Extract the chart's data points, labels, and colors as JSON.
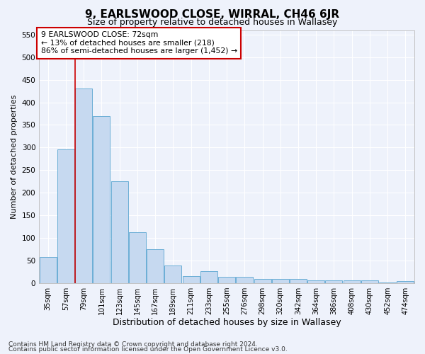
{
  "title": "9, EARLSWOOD CLOSE, WIRRAL, CH46 6JR",
  "subtitle": "Size of property relative to detached houses in Wallasey",
  "xlabel": "Distribution of detached houses by size in Wallasey",
  "ylabel": "Number of detached properties",
  "footnote1": "Contains HM Land Registry data © Crown copyright and database right 2024.",
  "footnote2": "Contains public sector information licensed under the Open Government Licence v3.0.",
  "categories": [
    "35sqm",
    "57sqm",
    "79sqm",
    "101sqm",
    "123sqm",
    "145sqm",
    "167sqm",
    "189sqm",
    "211sqm",
    "233sqm",
    "255sqm",
    "276sqm",
    "298sqm",
    "320sqm",
    "342sqm",
    "364sqm",
    "386sqm",
    "408sqm",
    "430sqm",
    "452sqm",
    "474sqm"
  ],
  "values": [
    57,
    295,
    430,
    370,
    225,
    112,
    75,
    38,
    15,
    26,
    13,
    13,
    8,
    9,
    9,
    5,
    5,
    5,
    5,
    1,
    4
  ],
  "bar_color": "#c6d9f0",
  "bar_edge_color": "#6baed6",
  "bg_color": "#eef2fb",
  "plot_bg_color": "#eef2fb",
  "grid_color": "#ffffff",
  "annotation_title": "9 EARLSWOOD CLOSE: 72sqm",
  "annotation_line1": "← 13% of detached houses are smaller (218)",
  "annotation_line2": "86% of semi-detached houses are larger (1,452) →",
  "red_line_color": "#cc0000",
  "red_line_x": 1.5,
  "ylim": [
    0,
    560
  ],
  "yticks": [
    0,
    50,
    100,
    150,
    200,
    250,
    300,
    350,
    400,
    450,
    500,
    550
  ],
  "title_fontsize": 11,
  "subtitle_fontsize": 9,
  "xlabel_fontsize": 9,
  "ylabel_fontsize": 8,
  "tick_fontsize": 7,
  "footnote_fontsize": 6.5
}
